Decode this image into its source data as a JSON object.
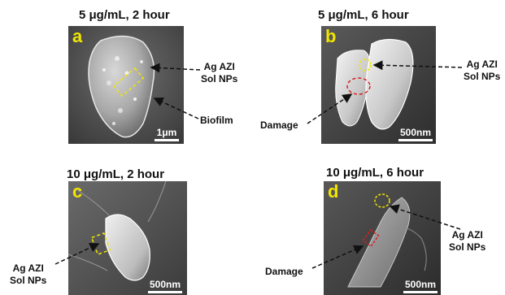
{
  "panels": [
    {
      "letter": "a",
      "title": "5 μg/mL, 2 hour",
      "scale": "1μm"
    },
    {
      "letter": "b",
      "title": "5 μg/mL, 6 hour",
      "scale": "500nm"
    },
    {
      "letter": "c",
      "title": "10 μg/mL, 2 hour",
      "scale": "500nm"
    },
    {
      "letter": "d",
      "title": "10 μg/mL, 6 hour",
      "scale": "500nm"
    }
  ],
  "labels": {
    "np_line1": "Ag AZI",
    "np_line2": "Sol NPs",
    "biofilm": "Biofilm",
    "damage": "Damage"
  },
  "colors": {
    "panel_letter": "#f2e600",
    "np_marker": "#f0e600",
    "damage_marker": "#d81e1e"
  }
}
